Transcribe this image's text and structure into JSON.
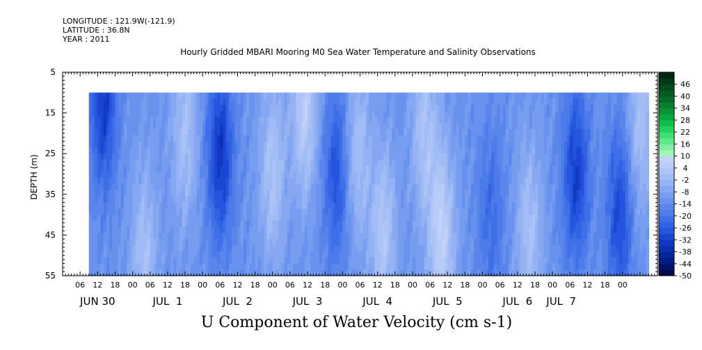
{
  "header": {
    "longitude": "LONGITUDE : 121.9W(-121.9)",
    "latitude": "LATITUDE : 36.8N",
    "year": "YEAR : 2011"
  },
  "chart_data": {
    "type": "heatmap",
    "title": "Hourly Gridded MBARI Mooring M0 Sea Water Temperature and Salinity Observations",
    "xlabel": "",
    "ylabel": "DEPTH (m)",
    "variable_title": "U Component of Water Velocity (cm s-1)",
    "x_tick_hours": [
      "06",
      "12",
      "18",
      "00",
      "06",
      "12",
      "18",
      "00",
      "06",
      "12",
      "18",
      "00",
      "06",
      "12",
      "18",
      "00",
      "06",
      "12",
      "18",
      "00",
      "06",
      "12",
      "18",
      "00",
      "06",
      "12",
      "18",
      "00",
      "06",
      "12",
      "18",
      "00"
    ],
    "x_day_labels": [
      "JUN 30",
      "JUL  1",
      "JUL  2",
      "JUL  3",
      "JUL  4",
      "JUL  5",
      "JUL  6",
      "JUL  7"
    ],
    "x_range_hours": [
      0,
      204
    ],
    "data_x_range_hours": [
      9,
      201
    ],
    "y_ticks": [
      5,
      15,
      25,
      35,
      45,
      55
    ],
    "ylim": [
      55,
      5
    ],
    "data_depth_range_m": [
      10,
      55
    ],
    "colorbar_labels": [
      "46",
      "40",
      "34",
      "28",
      "22",
      "16",
      "10",
      "4",
      "-2",
      "-8",
      "-14",
      "-20",
      "-26",
      "-32",
      "-38",
      "-44",
      "-50"
    ],
    "colorbar_range": [
      -50,
      52
    ],
    "colorbar_step": 3,
    "colorbar_colors": [
      "#000a4e",
      "#00126b",
      "#021c86",
      "#06259c",
      "#0a2eb0",
      "#1038c2",
      "#1a46d0",
      "#2555dc",
      "#3262e4",
      "#3f6fe8",
      "#4d7bea",
      "#5a86ec",
      "#6892ee",
      "#779df0",
      "#86a8f2",
      "#94b2f4",
      "#a2bcf5",
      "#aec4f6",
      "#b9cbf7",
      "#c3d3f7",
      "#9ef5b5",
      "#80f0a0",
      "#5fe78a",
      "#3ede72",
      "#20d25c",
      "#10be4c",
      "#0aa840",
      "#089336",
      "#067f2e",
      "#056c27",
      "#045a21",
      "#03491b",
      "#023916",
      "#022a11"
    ],
    "u_velocity_estimate": {
      "depths_m": [
        10,
        55
      ],
      "times_hours": [
        9,
        201
      ],
      "background": -12,
      "features": [
        {
          "t": 14,
          "d": 12,
          "value": -33
        },
        {
          "t": 28,
          "d": 50,
          "value": 1
        },
        {
          "t": 42,
          "d": 20,
          "value": 1
        },
        {
          "t": 54,
          "d": 25,
          "value": -34
        },
        {
          "t": 72,
          "d": 30,
          "value": 2
        },
        {
          "t": 83,
          "d": 14,
          "value": 6
        },
        {
          "t": 94,
          "d": 30,
          "value": -28
        },
        {
          "t": 101,
          "d": 25,
          "value": 1
        },
        {
          "t": 110,
          "d": 45,
          "value": 3
        },
        {
          "t": 124,
          "d": 20,
          "value": 1
        },
        {
          "t": 130,
          "d": 45,
          "value": 7
        },
        {
          "t": 147,
          "d": 40,
          "value": -22
        },
        {
          "t": 160,
          "d": 44,
          "value": 1
        },
        {
          "t": 176,
          "d": 30,
          "value": -32
        },
        {
          "t": 191,
          "d": 40,
          "value": -30
        },
        {
          "t": 198,
          "d": 18,
          "value": 1
        }
      ]
    }
  }
}
